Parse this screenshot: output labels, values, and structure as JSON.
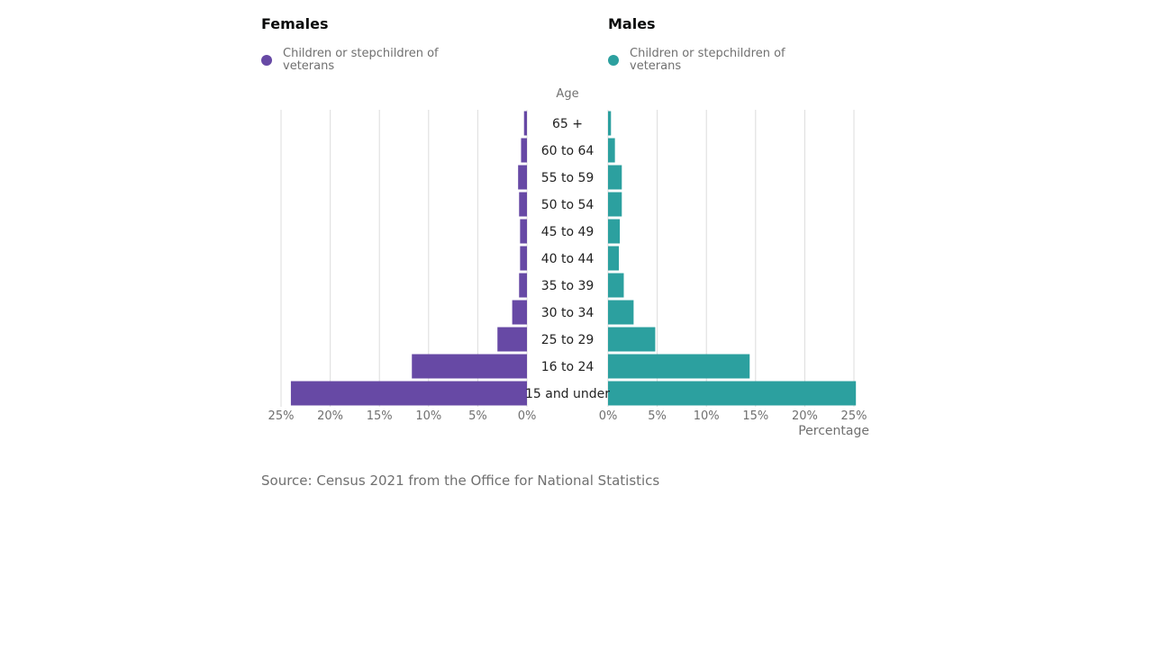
{
  "chart_data": {
    "type": "bar",
    "orientation": "horizontal",
    "subtype": "population-pyramid",
    "center_label": "Age",
    "xlabel": "Percentage",
    "xlim": [
      0,
      25
    ],
    "xticks": [
      "0%",
      "5%",
      "10%",
      "15%",
      "20%",
      "25%"
    ],
    "categories": [
      "65 +",
      "60 to 64",
      "55 to 59",
      "50 to 54",
      "45 to 49",
      "40 to 44",
      "35 to 39",
      "30 to 34",
      "25 to 29",
      "16 to 24",
      "15 and under"
    ],
    "panels": [
      {
        "title": "Females",
        "side": "left",
        "series": [
          {
            "name": "Children or stepchildren of veterans",
            "color": "#6749a5",
            "values": [
              0.3,
              0.6,
              0.9,
              0.8,
              0.7,
              0.7,
              0.8,
              1.5,
              3.0,
              11.7,
              24.0
            ]
          }
        ]
      },
      {
        "title": "Males",
        "side": "right",
        "series": [
          {
            "name": "Children or stepchildren of veterans",
            "color": "#2ca09f",
            "values": [
              0.3,
              0.7,
              1.4,
              1.4,
              1.2,
              1.1,
              1.6,
              2.6,
              4.8,
              14.4,
              25.2
            ]
          }
        ]
      }
    ],
    "grid": true
  },
  "source": "Source: Census 2021 from the Office for National Statistics"
}
